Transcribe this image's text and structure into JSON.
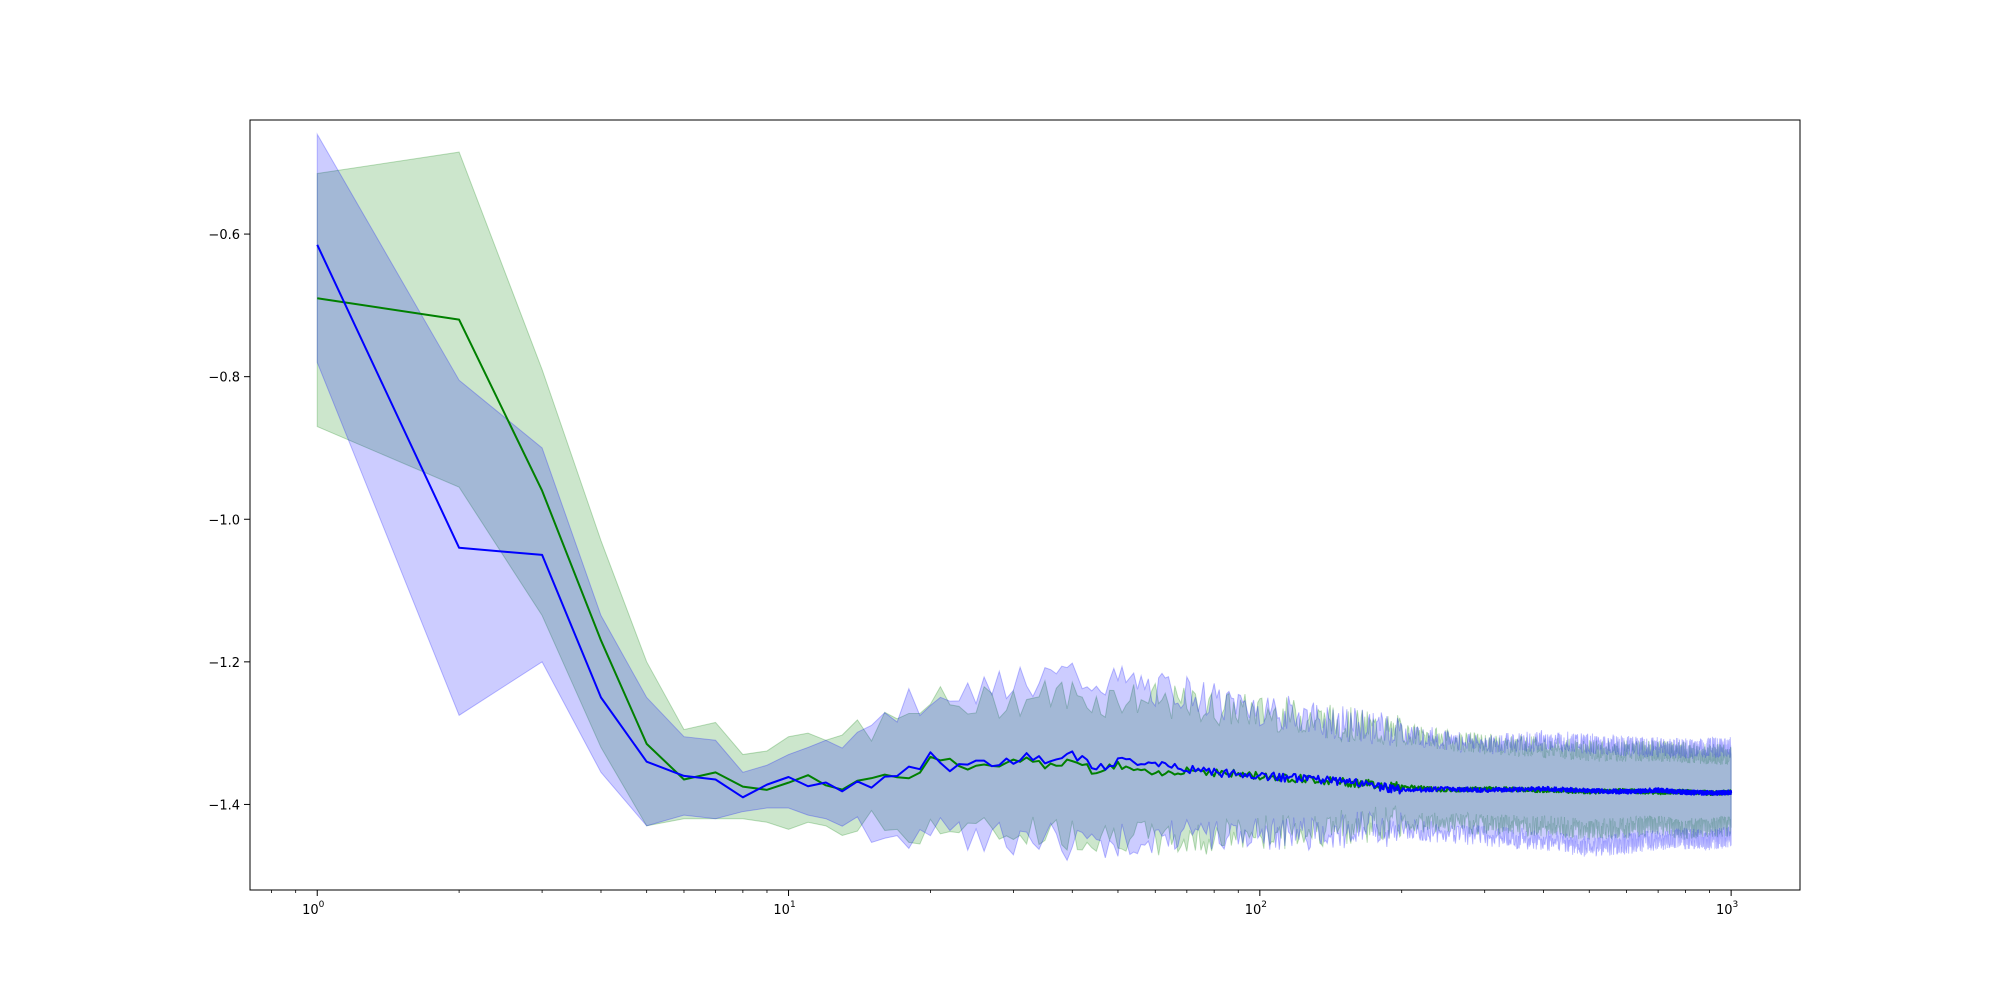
{
  "chart_data": {
    "type": "line",
    "title": "",
    "xlabel": "",
    "ylabel": "",
    "xscale": "log",
    "xlim": [
      0.72,
      1400
    ],
    "ylim": [
      -1.52,
      -0.44
    ],
    "grid": false,
    "legend": "none",
    "x_ticks": [
      {
        "value": 1,
        "base": "10",
        "exp": "0"
      },
      {
        "value": 10,
        "base": "10",
        "exp": "1"
      },
      {
        "value": 100,
        "base": "10",
        "exp": "2"
      },
      {
        "value": 1000,
        "base": "10",
        "exp": "3"
      }
    ],
    "y_ticks": [
      {
        "value": -1.4,
        "label": "−1.4"
      },
      {
        "value": -1.2,
        "label": "−1.2"
      },
      {
        "value": -1.0,
        "label": "−1.0"
      },
      {
        "value": -0.8,
        "label": "−0.8"
      },
      {
        "value": -0.6,
        "label": "−0.6"
      }
    ],
    "series": [
      {
        "color": "#008000",
        "band_color": "#008000",
        "band_opacity": 0.2,
        "x": [
          1,
          2,
          3,
          4,
          5,
          6,
          7,
          8,
          9,
          10,
          11,
          12,
          13,
          14,
          15,
          16,
          17,
          18,
          19,
          20,
          22,
          25,
          28,
          32,
          36,
          40,
          45,
          50,
          60,
          70,
          80,
          100,
          130,
          160,
          200,
          250,
          300,
          400,
          500,
          600,
          700,
          800,
          900,
          1000
        ],
        "y": [
          -0.69,
          -0.72,
          -0.96,
          -1.17,
          -1.315,
          -1.365,
          -1.355,
          -1.375,
          -1.385,
          -1.37,
          -1.355,
          -1.37,
          -1.375,
          -1.365,
          -1.36,
          -1.355,
          -1.365,
          -1.36,
          -1.35,
          -1.335,
          -1.34,
          -1.35,
          -1.345,
          -1.34,
          -1.345,
          -1.335,
          -1.355,
          -1.345,
          -1.36,
          -1.35,
          -1.355,
          -1.36,
          -1.365,
          -1.37,
          -1.375,
          -1.38,
          -1.378,
          -1.38,
          -1.382,
          -1.381,
          -1.383,
          -1.382,
          -1.384,
          -1.383
        ],
        "upper": [
          -0.515,
          -0.485,
          -0.79,
          -1.03,
          -1.2,
          -1.295,
          -1.285,
          -1.33,
          -1.325,
          -1.305,
          -1.3,
          -1.31,
          -1.305,
          -1.295,
          -1.29,
          -1.29,
          -1.285,
          -1.28,
          -1.27,
          -1.255,
          -1.26,
          -1.26,
          -1.255,
          -1.25,
          -1.245,
          -1.245,
          -1.255,
          -1.25,
          -1.255,
          -1.26,
          -1.265,
          -1.27,
          -1.28,
          -1.29,
          -1.3,
          -1.31,
          -1.315,
          -1.32,
          -1.325,
          -1.325,
          -1.325,
          -1.327,
          -1.33,
          -1.33
        ],
        "lower": [
          -0.87,
          -0.955,
          -1.135,
          -1.32,
          -1.43,
          -1.42,
          -1.42,
          -1.42,
          -1.425,
          -1.435,
          -1.425,
          -1.43,
          -1.435,
          -1.43,
          -1.43,
          -1.435,
          -1.43,
          -1.435,
          -1.435,
          -1.43,
          -1.435,
          -1.44,
          -1.44,
          -1.435,
          -1.44,
          -1.44,
          -1.445,
          -1.44,
          -1.45,
          -1.45,
          -1.445,
          -1.44,
          -1.435,
          -1.43,
          -1.425,
          -1.425,
          -1.428,
          -1.43,
          -1.435,
          -1.432,
          -1.43,
          -1.435,
          -1.432,
          -1.43
        ]
      },
      {
        "color": "#0000ff",
        "band_color": "#0000ff",
        "band_opacity": 0.2,
        "x": [
          1,
          2,
          3,
          4,
          5,
          6,
          7,
          8,
          9,
          10,
          11,
          12,
          13,
          14,
          15,
          16,
          17,
          18,
          19,
          20,
          22,
          25,
          28,
          32,
          36,
          40,
          45,
          50,
          60,
          70,
          80,
          100,
          130,
          160,
          200,
          250,
          300,
          400,
          500,
          600,
          700,
          800,
          900,
          1000
        ],
        "y": [
          -0.615,
          -1.04,
          -1.05,
          -1.25,
          -1.34,
          -1.36,
          -1.365,
          -1.39,
          -1.37,
          -1.36,
          -1.37,
          -1.375,
          -1.38,
          -1.37,
          -1.375,
          -1.365,
          -1.36,
          -1.35,
          -1.345,
          -1.33,
          -1.35,
          -1.34,
          -1.345,
          -1.33,
          -1.34,
          -1.33,
          -1.35,
          -1.34,
          -1.345,
          -1.35,
          -1.355,
          -1.36,
          -1.365,
          -1.37,
          -1.38,
          -1.378,
          -1.38,
          -1.378,
          -1.381,
          -1.382,
          -1.38,
          -1.383,
          -1.384,
          -1.383
        ],
        "upper": [
          -0.46,
          -0.805,
          -0.9,
          -1.135,
          -1.25,
          -1.305,
          -1.31,
          -1.355,
          -1.345,
          -1.33,
          -1.32,
          -1.31,
          -1.3,
          -1.29,
          -1.28,
          -1.27,
          -1.27,
          -1.26,
          -1.255,
          -1.24,
          -1.24,
          -1.235,
          -1.23,
          -1.225,
          -1.225,
          -1.22,
          -1.23,
          -1.23,
          -1.24,
          -1.245,
          -1.255,
          -1.265,
          -1.28,
          -1.29,
          -1.3,
          -1.31,
          -1.315,
          -1.31,
          -1.315,
          -1.318,
          -1.32,
          -1.322,
          -1.32,
          -1.32
        ],
        "lower": [
          -0.78,
          -1.275,
          -1.2,
          -1.355,
          -1.43,
          -1.415,
          -1.42,
          -1.41,
          -1.405,
          -1.405,
          -1.415,
          -1.42,
          -1.425,
          -1.425,
          -1.435,
          -1.435,
          -1.44,
          -1.44,
          -1.44,
          -1.44,
          -1.445,
          -1.445,
          -1.45,
          -1.45,
          -1.45,
          -1.455,
          -1.45,
          -1.45,
          -1.445,
          -1.445,
          -1.44,
          -1.44,
          -1.44,
          -1.435,
          -1.435,
          -1.44,
          -1.445,
          -1.45,
          -1.46,
          -1.455,
          -1.45,
          -1.448,
          -1.45,
          -1.445
        ]
      }
    ]
  }
}
